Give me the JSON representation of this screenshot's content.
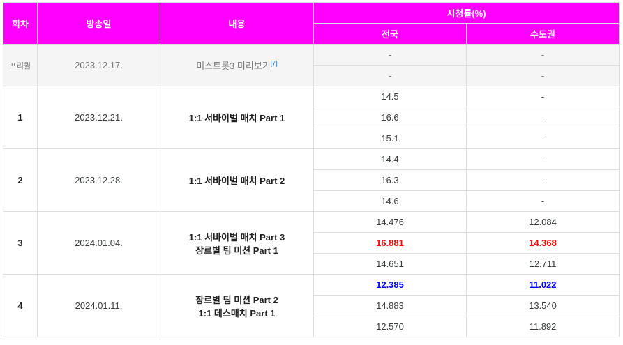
{
  "header": {
    "episode": "회차",
    "airdate": "방송일",
    "content": "내용",
    "ratings": "시청률(%)",
    "nationwide": "전국",
    "metro": "수도권"
  },
  "prerelease": {
    "episode": "프리퀄",
    "airdate": "2023.12.17.",
    "content": "미스트롯3 미리보기",
    "footnote": "[7]",
    "rows": [
      {
        "nationwide": "-",
        "metro": "-"
      },
      {
        "nationwide": "-",
        "metro": "-"
      }
    ]
  },
  "episodes": [
    {
      "episode": "1",
      "airdate": "2023.12.21.",
      "content_line1": "1:1 서바이벌 매치 Part 1",
      "content_line2": "",
      "rows": [
        {
          "nationwide": "14.5",
          "metro": "-"
        },
        {
          "nationwide": "16.6",
          "metro": "-"
        },
        {
          "nationwide": "15.1",
          "metro": "-"
        }
      ]
    },
    {
      "episode": "2",
      "airdate": "2023.12.28.",
      "content_line1": "1:1 서바이벌 매치 Part 2",
      "content_line2": "",
      "rows": [
        {
          "nationwide": "14.4",
          "metro": "-"
        },
        {
          "nationwide": "16.3",
          "metro": "-"
        },
        {
          "nationwide": "14.6",
          "metro": "-"
        }
      ]
    },
    {
      "episode": "3",
      "airdate": "2024.01.04.",
      "content_line1": "1:1 서바이벌 매치 Part 3",
      "content_line2": "장르별 팀 미션 Part 1",
      "rows": [
        {
          "nationwide": "14.476",
          "metro": "12.084"
        },
        {
          "nationwide": "16.881",
          "metro": "14.368"
        },
        {
          "nationwide": "14.651",
          "metro": "12.711"
        }
      ]
    },
    {
      "episode": "4",
      "airdate": "2024.01.11.",
      "content_line1": "장르별 팀 미션 Part 2",
      "content_line2": "1:1 데스매치 Part 1",
      "rows": [
        {
          "nationwide": "12.385",
          "metro": "11.022"
        },
        {
          "nationwide": "14.883",
          "metro": "13.540"
        },
        {
          "nationwide": "12.570",
          "metro": "11.892"
        }
      ]
    }
  ],
  "colors": {
    "header_bg": "#ff00ff",
    "highest": "#ff0000",
    "lowest": "#0000ff"
  }
}
